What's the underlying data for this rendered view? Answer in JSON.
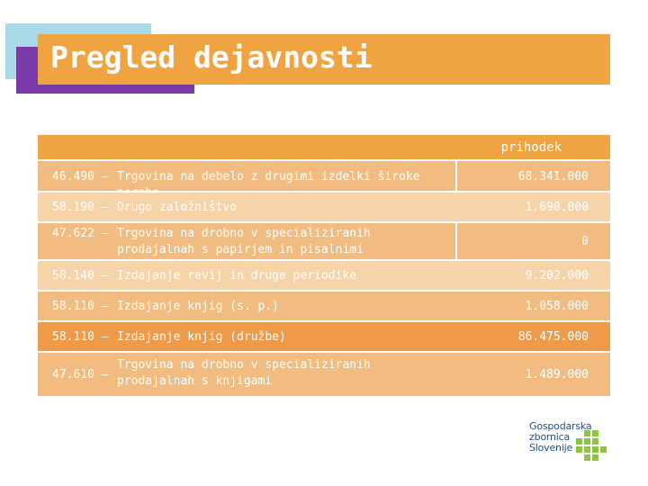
{
  "title": "Pregled dejavnosti",
  "table": {
    "header": "prihodek",
    "rows": [
      {
        "code": "46.490 –",
        "desc": "Trgovina na debelo z drugimi izdelki široke porabe",
        "value": "68.341.000"
      },
      {
        "code": "58.190 –",
        "desc": "Drugo založništvo",
        "value": "1.690.000"
      },
      {
        "code": "47.622 –",
        "desc": "Trgovina na drobno v specializiranih prodajalnah s papirjem in pisalnimi potrebščinami",
        "value": "0"
      },
      {
        "code": "58.140 –",
        "desc": "Izdajanje revij in druge periodike",
        "value": "9.202.000"
      },
      {
        "code": "58.110 –",
        "desc": "Izdajanje knjig (s. p.)",
        "value": "1.058.000"
      },
      {
        "code": "58.110 –",
        "desc": "Izdajanje knjig (družbe)",
        "value": "86.475.000"
      },
      {
        "code": "47.610 –",
        "desc": "Trgovina na drobno v specializiranih prodajalnah s knjigami",
        "value": "1.489.000"
      }
    ]
  },
  "logo": {
    "line1": "Gospodarska",
    "line2": "zbornica",
    "line3": "Slovenije"
  },
  "colors": {
    "accent_orange": "#f0a441",
    "accent_purple": "#7a3aa8",
    "accent_cyan": "#a9d8e6",
    "logo_blue": "#1f4e86",
    "logo_green": "#8cc63f"
  }
}
